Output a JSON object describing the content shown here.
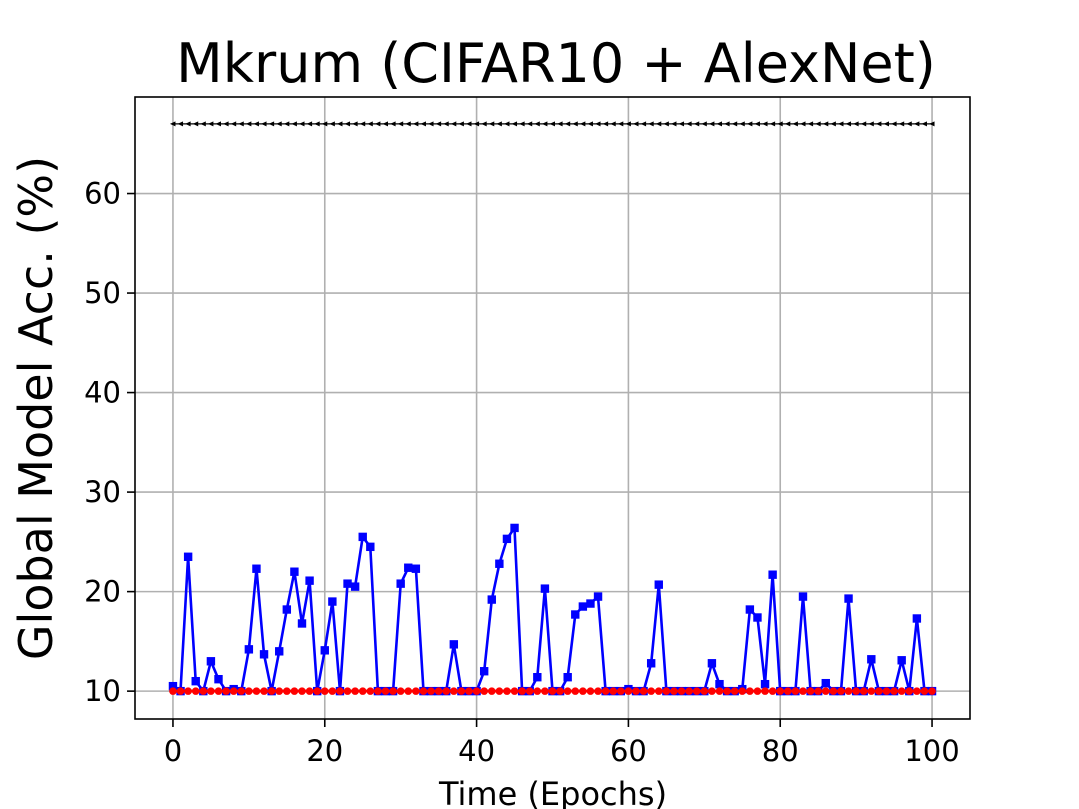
{
  "chart_data": {
    "type": "line",
    "title": "Mkrum (CIFAR10 + AlexNet)",
    "xlabel": "Time (Epochs)",
    "ylabel": "Global Model Acc. (%)",
    "xlim": [
      -5,
      105
    ],
    "ylim": [
      7.2,
      69.7
    ],
    "xticks": [
      0,
      20,
      40,
      60,
      80,
      100
    ],
    "yticks": [
      10,
      20,
      30,
      40,
      50,
      60
    ],
    "grid": true,
    "legend": "none",
    "x": [
      0,
      1,
      2,
      3,
      4,
      5,
      6,
      7,
      8,
      9,
      10,
      11,
      12,
      13,
      14,
      15,
      16,
      17,
      18,
      19,
      20,
      21,
      22,
      23,
      24,
      25,
      26,
      27,
      28,
      29,
      30,
      31,
      32,
      33,
      34,
      35,
      36,
      37,
      38,
      39,
      40,
      41,
      42,
      43,
      44,
      45,
      46,
      47,
      48,
      49,
      50,
      51,
      52,
      53,
      54,
      55,
      56,
      57,
      58,
      59,
      60,
      61,
      62,
      63,
      64,
      65,
      66,
      67,
      68,
      69,
      70,
      71,
      72,
      73,
      74,
      75,
      76,
      77,
      78,
      79,
      80,
      81,
      82,
      83,
      84,
      85,
      86,
      87,
      88,
      89,
      90,
      91,
      92,
      93,
      94,
      95,
      96,
      97,
      98,
      99,
      100
    ],
    "series": [
      {
        "color": "#000000",
        "marker": "triangle-left",
        "values": [
          67,
          67,
          67,
          67,
          67,
          67,
          67,
          67,
          67,
          67,
          67,
          67,
          67,
          67,
          67,
          67,
          67,
          67,
          67,
          67,
          67,
          67,
          67,
          67,
          67,
          67,
          67,
          67,
          67,
          67,
          67,
          67,
          67,
          67,
          67,
          67,
          67,
          67,
          67,
          67,
          67,
          67,
          67,
          67,
          67,
          67,
          67,
          67,
          67,
          67,
          67,
          67,
          67,
          67,
          67,
          67,
          67,
          67,
          67,
          67,
          67,
          67,
          67,
          67,
          67,
          67,
          67,
          67,
          67,
          67,
          67,
          67,
          67,
          67,
          67,
          67,
          67,
          67,
          67,
          67,
          67,
          67,
          67,
          67,
          67,
          67,
          67,
          67,
          67,
          67,
          67,
          67,
          67,
          67,
          67,
          67,
          67,
          67,
          67,
          67,
          67
        ]
      },
      {
        "color": "#008000",
        "marker": "point",
        "values": [
          10,
          10,
          10,
          10,
          10,
          10,
          10,
          10,
          10,
          10,
          10,
          10,
          10,
          10,
          10,
          10,
          10,
          10,
          10,
          10,
          10,
          10,
          10,
          10,
          10,
          10,
          10,
          10,
          10,
          10,
          10,
          10,
          10,
          10,
          10,
          10,
          10,
          10,
          10,
          10,
          10,
          10,
          10,
          10,
          10,
          10,
          10,
          10,
          10,
          10,
          10,
          10,
          10,
          10,
          10,
          10,
          10,
          10,
          10,
          10,
          10,
          10,
          10,
          10,
          10,
          10,
          10,
          10,
          10,
          10,
          10,
          10,
          10,
          10,
          10,
          10,
          10,
          10,
          10,
          10,
          10,
          10,
          10,
          10,
          10,
          10,
          10,
          10,
          10,
          10,
          10,
          10,
          10,
          10,
          10,
          10,
          10,
          10,
          10,
          10,
          10
        ]
      },
      {
        "color": "#0000ff",
        "marker": "square",
        "values": [
          10.5,
          10,
          23.5,
          11,
          10,
          13,
          11.2,
          10,
          10.2,
          10,
          14.2,
          22.3,
          13.7,
          10,
          14,
          18.2,
          22,
          16.8,
          21.1,
          10,
          14.1,
          19,
          10,
          20.8,
          20.5,
          25.5,
          24.5,
          10,
          10,
          10,
          20.8,
          22.4,
          22.3,
          10,
          10,
          10,
          10,
          14.7,
          10,
          10,
          10,
          12,
          19.2,
          22.8,
          25.3,
          26.4,
          10,
          10,
          11.4,
          20.3,
          10,
          10,
          11.4,
          17.7,
          18.5,
          18.8,
          19.5,
          10,
          10,
          10,
          10.2,
          10,
          10,
          12.8,
          20.7,
          10,
          10,
          10,
          10,
          10,
          10,
          12.8,
          10.7,
          10,
          10,
          10.2,
          18.2,
          17.4,
          10.7,
          21.7,
          10,
          10,
          10,
          19.5,
          10,
          10,
          10.8,
          10,
          10,
          19.3,
          10,
          10,
          13.2,
          10,
          10,
          10,
          13.1,
          10,
          17.3,
          10,
          10
        ]
      },
      {
        "color": "#ff0000",
        "marker": "circle",
        "values": [
          10,
          10,
          10,
          10,
          10,
          10,
          10,
          10,
          10,
          10,
          10,
          10,
          10,
          10,
          10,
          10,
          10,
          10,
          10,
          10,
          10,
          10,
          10,
          10,
          10,
          10,
          10,
          10,
          10,
          10,
          10,
          10,
          10,
          10,
          10,
          10,
          10,
          10,
          10,
          10,
          10,
          10,
          10,
          10,
          10,
          10,
          10,
          10,
          10,
          10,
          10,
          10,
          10,
          10,
          10,
          10,
          10,
          10,
          10,
          10,
          10,
          10,
          10,
          10,
          10,
          10,
          10,
          10,
          10,
          10,
          10,
          10,
          10,
          10,
          10,
          10,
          10,
          10,
          10,
          10,
          10,
          10,
          10,
          10,
          10,
          10,
          10,
          10,
          10,
          10,
          10,
          10,
          10,
          10,
          10,
          10,
          10,
          10,
          10,
          10,
          10
        ]
      }
    ]
  }
}
